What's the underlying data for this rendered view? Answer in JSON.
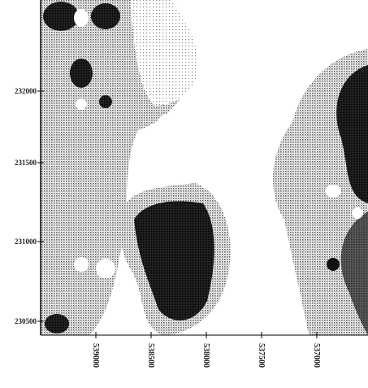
{
  "y_axis_labels": [
    "232000",
    "231500",
    "231000",
    "230500"
  ],
  "x_axis_labels": [
    "539000",
    "538500",
    "538000",
    "537500",
    "537000"
  ]
}
